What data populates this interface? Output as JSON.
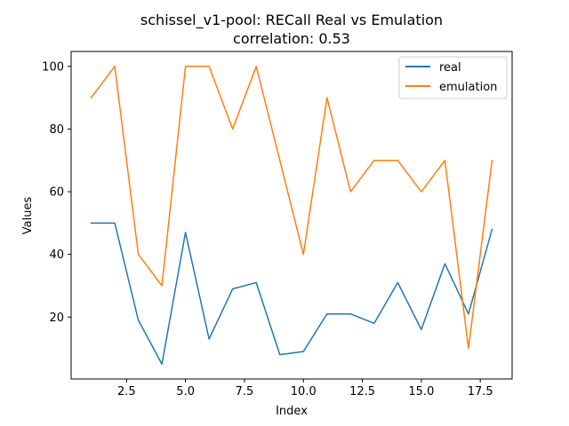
{
  "chart_data": {
    "type": "line",
    "title": "schissel_v1-pool: RECall Real vs Emulation",
    "subtitle": "correlation: 0.53",
    "xlabel": "Index",
    "ylabel": "Values",
    "x": [
      1,
      2,
      3,
      4,
      5,
      6,
      7,
      8,
      9,
      10,
      11,
      12,
      13,
      14,
      15,
      16,
      17,
      18
    ],
    "xlim": [
      0.15,
      18.85
    ],
    "ylim": [
      0.25,
      104.75
    ],
    "xticks": [
      2.5,
      5.0,
      7.5,
      10.0,
      12.5,
      15.0,
      17.5
    ],
    "xtick_labels": [
      "2.5",
      "5.0",
      "7.5",
      "10.0",
      "12.5",
      "15.0",
      "17.5"
    ],
    "yticks": [
      20,
      40,
      60,
      80,
      100
    ],
    "ytick_labels": [
      "20",
      "40",
      "60",
      "80",
      "100"
    ],
    "grid": false,
    "legend": "top-right",
    "series": [
      {
        "name": "real",
        "color": "#1f77b4",
        "values": [
          50,
          50,
          19,
          5,
          47,
          13,
          29,
          31,
          8,
          9,
          21,
          21,
          18,
          31,
          16,
          37,
          21,
          48
        ]
      },
      {
        "name": "emulation",
        "color": "#ff7f0e",
        "values": [
          90,
          100,
          40,
          30,
          100,
          100,
          80,
          100,
          70,
          40,
          90,
          60,
          70,
          70,
          60,
          70,
          10,
          70
        ]
      }
    ]
  }
}
